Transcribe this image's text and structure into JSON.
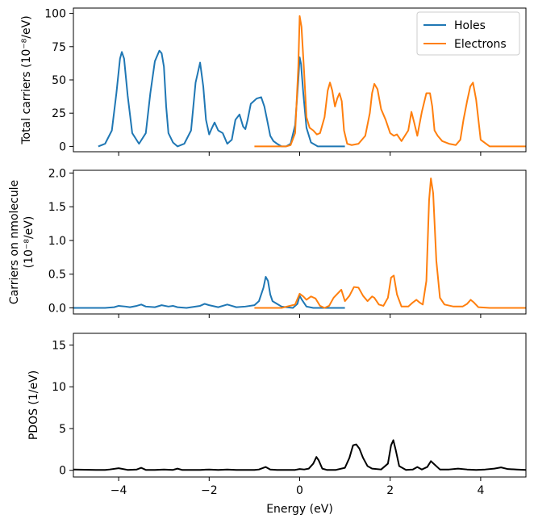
{
  "chart_data": [
    {
      "type": "line",
      "xlim": [
        -5,
        5
      ],
      "ylim": [
        -4,
        104
      ],
      "xticks": [
        -4,
        -2,
        0,
        2,
        4
      ],
      "show_xticklabels": false,
      "yticks": [
        0,
        25,
        50,
        75,
        100
      ],
      "ytick_labels": [
        "0",
        "25",
        "50",
        "75",
        "100"
      ],
      "ylabel": "Total carriers (10⁻⁸/eV)",
      "xlabel": "",
      "grid": false,
      "legend": "top-right",
      "series": [
        {
          "name": "Holes",
          "color": "#1f77b4",
          "x": [
            -4.45,
            -4.3,
            -4.15,
            -4.05,
            -3.97,
            -3.93,
            -3.88,
            -3.8,
            -3.7,
            -3.55,
            -3.4,
            -3.3,
            -3.2,
            -3.1,
            -3.05,
            -3.0,
            -2.95,
            -2.9,
            -2.8,
            -2.7,
            -2.55,
            -2.4,
            -2.3,
            -2.2,
            -2.13,
            -2.07,
            -2.0,
            -1.95,
            -1.88,
            -1.8,
            -1.7,
            -1.6,
            -1.5,
            -1.42,
            -1.33,
            -1.25,
            -1.2,
            -1.15,
            -1.08,
            -0.95,
            -0.85,
            -0.78,
            -0.72,
            -0.65,
            -0.58,
            -0.5,
            -0.4,
            -0.3,
            -0.2,
            -0.1,
            -0.03,
            0.0,
            0.03,
            0.08,
            0.15,
            0.25,
            0.4,
            0.6,
            0.8,
            1.0
          ],
          "y": [
            0,
            2,
            12,
            40,
            66,
            71,
            66,
            38,
            10,
            2,
            10,
            40,
            64,
            72,
            70,
            60,
            30,
            10,
            3,
            0,
            2,
            12,
            48,
            63,
            45,
            20,
            9,
            13,
            18,
            12,
            10,
            2,
            5,
            20,
            24,
            15,
            13,
            20,
            32,
            36,
            37,
            30,
            20,
            8,
            4,
            2,
            0,
            0,
            2,
            16,
            50,
            67,
            62,
            40,
            14,
            3,
            0,
            0,
            0,
            0
          ]
        },
        {
          "name": "Electrons",
          "color": "#ff7f0e",
          "x": [
            -1.0,
            -0.5,
            -0.3,
            -0.2,
            -0.1,
            -0.03,
            0.0,
            0.04,
            0.1,
            0.15,
            0.22,
            0.3,
            0.38,
            0.45,
            0.55,
            0.62,
            0.67,
            0.72,
            0.78,
            0.83,
            0.88,
            0.93,
            0.98,
            1.05,
            1.15,
            1.3,
            1.45,
            1.55,
            1.6,
            1.65,
            1.72,
            1.8,
            1.9,
            2.0,
            2.08,
            2.15,
            2.25,
            2.4,
            2.47,
            2.53,
            2.6,
            2.7,
            2.8,
            2.88,
            2.93,
            2.98,
            3.05,
            3.15,
            3.3,
            3.45,
            3.55,
            3.62,
            3.7,
            3.77,
            3.83,
            3.9,
            4.0,
            4.2,
            4.6,
            5.0
          ],
          "y": [
            0,
            0,
            0,
            1,
            10,
            60,
            98,
            90,
            55,
            22,
            14,
            12,
            9,
            10,
            22,
            42,
            48,
            42,
            30,
            36,
            40,
            34,
            12,
            2,
            1,
            2,
            8,
            25,
            40,
            47,
            43,
            28,
            20,
            10,
            8,
            9,
            4,
            12,
            26,
            18,
            8,
            26,
            40,
            40,
            30,
            12,
            8,
            4,
            2,
            1,
            5,
            20,
            34,
            45,
            48,
            35,
            5,
            0,
            0,
            0
          ]
        }
      ]
    },
    {
      "type": "line",
      "xlim": [
        -5,
        5
      ],
      "ylim": [
        -0.09,
        2.04
      ],
      "xticks": [
        -4,
        -2,
        0,
        2,
        4
      ],
      "show_xticklabels": false,
      "yticks": [
        0.0,
        0.5,
        1.0,
        1.5,
        2.0
      ],
      "ytick_labels": [
        "0.0",
        "0.5",
        "1.0",
        "1.5",
        "2.0"
      ],
      "ylabel": [
        "Carriers on nmolecule",
        "(10⁻⁸/eV)"
      ],
      "xlabel": "",
      "grid": false,
      "series": [
        {
          "name": "Holes",
          "color": "#1f77b4",
          "x": [
            -5.0,
            -4.3,
            -4.1,
            -4.0,
            -3.85,
            -3.75,
            -3.6,
            -3.5,
            -3.4,
            -3.2,
            -3.05,
            -2.9,
            -2.8,
            -2.7,
            -2.5,
            -2.2,
            -2.1,
            -2.0,
            -1.8,
            -1.6,
            -1.5,
            -1.4,
            -1.2,
            -1.0,
            -0.9,
            -0.8,
            -0.75,
            -0.7,
            -0.65,
            -0.6,
            -0.5,
            -0.4,
            -0.3,
            -0.15,
            -0.05,
            0.0,
            0.05,
            0.15,
            0.3,
            0.6,
            1.0
          ],
          "y": [
            0,
            0,
            0.01,
            0.03,
            0.02,
            0.01,
            0.03,
            0.05,
            0.02,
            0.01,
            0.04,
            0.02,
            0.03,
            0.01,
            0.0,
            0.03,
            0.06,
            0.04,
            0.01,
            0.05,
            0.03,
            0.01,
            0.02,
            0.04,
            0.1,
            0.3,
            0.46,
            0.4,
            0.2,
            0.1,
            0.06,
            0.02,
            0.01,
            0.0,
            0.06,
            0.18,
            0.12,
            0.02,
            0.0,
            0.0,
            0.0
          ]
        },
        {
          "name": "Electrons",
          "color": "#ff7f0e",
          "x": [
            -1.0,
            -0.4,
            -0.1,
            0.0,
            0.08,
            0.15,
            0.25,
            0.35,
            0.45,
            0.55,
            0.65,
            0.75,
            0.85,
            0.92,
            1.0,
            1.1,
            1.2,
            1.3,
            1.4,
            1.5,
            1.6,
            1.65,
            1.75,
            1.85,
            1.95,
            2.02,
            2.08,
            2.15,
            2.25,
            2.4,
            2.5,
            2.58,
            2.65,
            2.72,
            2.8,
            2.86,
            2.9,
            2.95,
            3.02,
            3.1,
            3.2,
            3.4,
            3.6,
            3.7,
            3.78,
            3.85,
            3.95,
            4.2,
            4.6,
            5.0
          ],
          "y": [
            0,
            0,
            0.05,
            0.21,
            0.17,
            0.12,
            0.17,
            0.14,
            0.03,
            0.0,
            0.03,
            0.15,
            0.22,
            0.27,
            0.1,
            0.18,
            0.31,
            0.3,
            0.18,
            0.1,
            0.17,
            0.15,
            0.05,
            0.03,
            0.15,
            0.45,
            0.48,
            0.2,
            0.02,
            0.02,
            0.08,
            0.12,
            0.08,
            0.05,
            0.4,
            1.6,
            1.92,
            1.7,
            0.7,
            0.15,
            0.05,
            0.02,
            0.02,
            0.06,
            0.12,
            0.08,
            0.01,
            0.0,
            0.0,
            0.0
          ]
        }
      ]
    },
    {
      "type": "line",
      "xlim": [
        -5,
        5
      ],
      "ylim": [
        -0.8,
        16.4
      ],
      "xticks": [
        -4,
        -2,
        0,
        2,
        4
      ],
      "xtick_labels": [
        "−4",
        "−2",
        "0",
        "2",
        "4"
      ],
      "show_xticklabels": true,
      "yticks": [
        0,
        5,
        10,
        15
      ],
      "ytick_labels": [
        "0",
        "5",
        "10",
        "15"
      ],
      "ylabel": "PDOS (1/eV)",
      "xlabel": "Energy (eV)",
      "grid": false,
      "series": [
        {
          "name": "",
          "color": "#000000",
          "x": [
            -5.0,
            -4.5,
            -4.3,
            -4.2,
            -4.0,
            -3.8,
            -3.6,
            -3.5,
            -3.4,
            -3.2,
            -3.0,
            -2.8,
            -2.7,
            -2.6,
            -2.4,
            -2.2,
            -2.0,
            -1.8,
            -1.6,
            -1.4,
            -1.2,
            -1.0,
            -0.9,
            -0.75,
            -0.65,
            -0.5,
            -0.3,
            -0.2,
            -0.1,
            0.0,
            0.1,
            0.2,
            0.3,
            0.37,
            0.42,
            0.5,
            0.6,
            0.8,
            1.0,
            1.1,
            1.18,
            1.25,
            1.32,
            1.4,
            1.5,
            1.6,
            1.8,
            1.95,
            2.02,
            2.07,
            2.12,
            2.2,
            2.35,
            2.5,
            2.6,
            2.7,
            2.82,
            2.9,
            2.98,
            3.1,
            3.3,
            3.5,
            3.7,
            3.9,
            4.1,
            4.3,
            4.45,
            4.6,
            4.8,
            5.0
          ],
          "y": [
            0.1,
            0.05,
            0.05,
            0.1,
            0.25,
            0.05,
            0.1,
            0.3,
            0.05,
            0.05,
            0.1,
            0.05,
            0.2,
            0.05,
            0.05,
            0.05,
            0.1,
            0.05,
            0.1,
            0.05,
            0.05,
            0.05,
            0.1,
            0.4,
            0.1,
            0.05,
            0.05,
            0.05,
            0.05,
            0.15,
            0.1,
            0.2,
            0.8,
            1.6,
            1.2,
            0.2,
            0.05,
            0.05,
            0.3,
            1.5,
            3.0,
            3.1,
            2.6,
            1.5,
            0.5,
            0.2,
            0.1,
            0.8,
            3.0,
            3.6,
            2.5,
            0.5,
            0.05,
            0.1,
            0.4,
            0.1,
            0.4,
            1.1,
            0.7,
            0.1,
            0.1,
            0.2,
            0.1,
            0.05,
            0.1,
            0.2,
            0.35,
            0.15,
            0.1,
            0.05
          ]
        }
      ]
    }
  ]
}
